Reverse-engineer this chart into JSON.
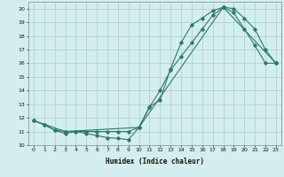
{
  "line1_x": [
    0,
    1,
    2,
    3,
    4,
    5,
    6,
    7,
    8,
    9,
    10,
    11,
    12,
    13,
    14,
    15,
    16,
    17,
    18,
    19,
    20,
    21,
    22,
    23
  ],
  "line1_y": [
    11.8,
    11.5,
    11.1,
    10.85,
    11.0,
    10.85,
    10.7,
    10.55,
    10.5,
    10.4,
    11.3,
    12.8,
    13.3,
    15.6,
    17.5,
    18.8,
    19.3,
    19.85,
    20.1,
    19.7,
    18.5,
    17.3,
    16.0,
    16.0
  ],
  "line2_x": [
    0,
    1,
    2,
    3,
    4,
    5,
    6,
    7,
    8,
    9,
    10,
    11,
    12,
    13,
    14,
    15,
    16,
    17,
    18,
    19,
    20,
    21,
    22,
    23
  ],
  "line2_y": [
    11.8,
    11.5,
    11.1,
    11.0,
    11.0,
    11.0,
    11.0,
    11.0,
    11.0,
    11.0,
    11.3,
    12.8,
    14.0,
    15.5,
    16.5,
    17.5,
    18.5,
    19.5,
    20.1,
    20.0,
    19.3,
    18.5,
    17.0,
    16.0
  ],
  "line3_x": [
    0,
    3,
    10,
    18,
    23
  ],
  "line3_y": [
    11.8,
    11.0,
    11.3,
    20.1,
    16.0
  ],
  "color": "#2a7a6a",
  "bg_color": "#d4eeee",
  "grid_color": "#aacccc",
  "xlabel": "Humidex (Indice chaleur)",
  "xlim": [
    -0.5,
    23.5
  ],
  "ylim": [
    10,
    20.5
  ],
  "yticks": [
    10,
    11,
    12,
    13,
    14,
    15,
    16,
    17,
    18,
    19,
    20
  ],
  "xticks": [
    0,
    1,
    2,
    3,
    4,
    5,
    6,
    7,
    8,
    9,
    10,
    11,
    12,
    13,
    14,
    15,
    16,
    17,
    18,
    19,
    20,
    21,
    22,
    23
  ]
}
